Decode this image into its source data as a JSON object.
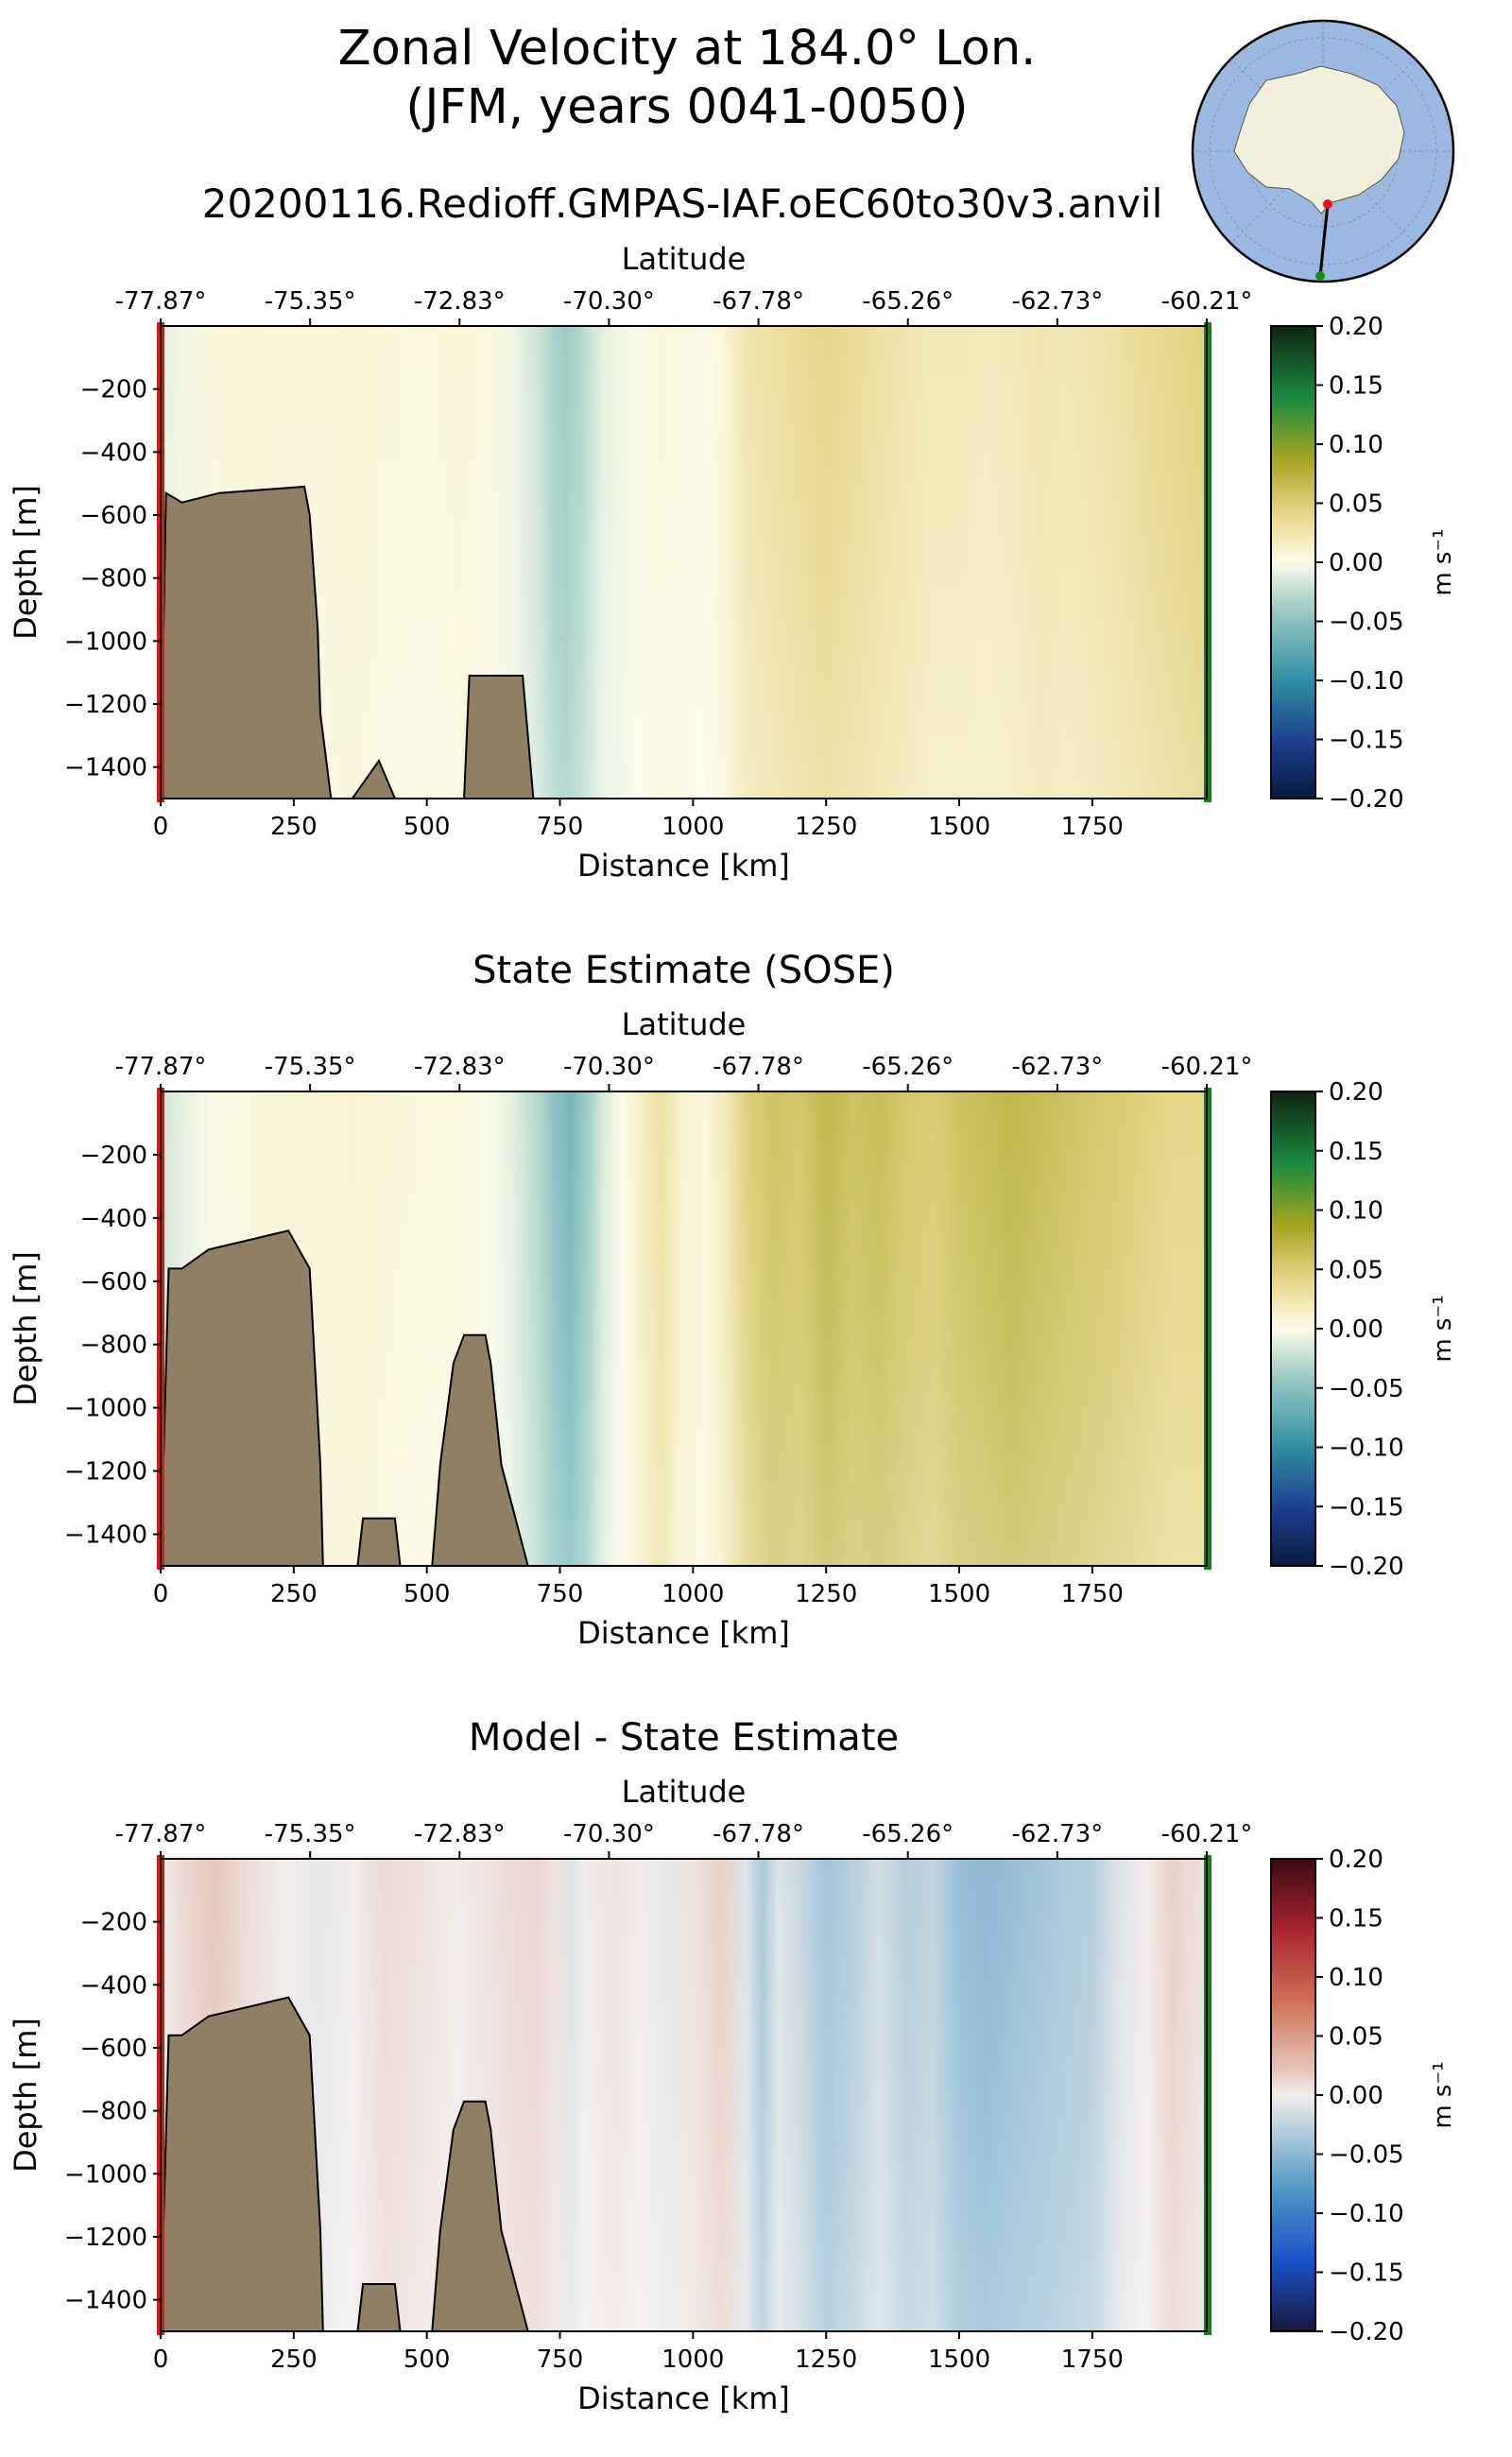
{
  "header": {
    "title_line1": "Zonal Velocity at 184.0° Lon.",
    "title_line2": "(JFM, years 0041-0050)",
    "run_name": "20200116.Redioff.GMPAS-IAF.oEC60to30v3.anvil"
  },
  "inset_map": {
    "description_icon": "antarctica-polar-map-icon",
    "ocean_color": "#9bb9e0",
    "land_color": "#f1efdd",
    "start_marker_color": "#e0151a",
    "end_marker_color": "#1a8c1a"
  },
  "chart_data": [
    {
      "type": "heatmap",
      "title": "",
      "xlabel": "Distance [km]",
      "ylabel": "Depth [m]",
      "top_axis_label": "Latitude",
      "top_ticks": [
        "-77.87°",
        "-75.35°",
        "-72.83°",
        "-70.30°",
        "-67.78°",
        "-65.26°",
        "-62.73°",
        "-60.21°"
      ],
      "xlim": [
        0,
        1965
      ],
      "ylim": [
        -1500,
        0
      ],
      "x_ticks": [
        0,
        250,
        500,
        750,
        1000,
        1250,
        1500,
        1750
      ],
      "y_ticks": [
        -200,
        -400,
        -600,
        -800,
        -1000,
        -1200,
        -1400
      ],
      "colorbar": {
        "label": "m s⁻¹",
        "colormap": "speed-diverging",
        "range": [
          -0.2,
          0.2
        ],
        "ticks": [
          "0.20",
          "0.15",
          "0.10",
          "0.05",
          "0.00",
          "−0.05",
          "−0.10",
          "−0.15",
          "−0.20"
        ]
      },
      "velocity_profile": {
        "x_km": [
          0,
          40,
          100,
          170,
          230,
          300,
          360,
          420,
          500,
          560,
          610,
          660,
          710,
          740,
          760,
          790,
          830,
          870,
          900,
          940,
          980,
          1020,
          1060,
          1100,
          1150,
          1200,
          1250,
          1300,
          1350,
          1400,
          1450,
          1500,
          1550,
          1600,
          1650,
          1700,
          1750,
          1800,
          1850,
          1900,
          1965
        ],
        "values": [
          -0.01,
          -0.005,
          0.005,
          0.008,
          0.006,
          0.006,
          0.008,
          0.005,
          0.004,
          0.006,
          0.004,
          -0.005,
          -0.02,
          -0.035,
          -0.04,
          -0.03,
          -0.01,
          -0.005,
          0.0,
          0.005,
          0.003,
          0.0,
          0.008,
          0.025,
          0.03,
          0.035,
          0.04,
          0.035,
          0.03,
          0.025,
          0.02,
          0.02,
          0.018,
          0.02,
          0.025,
          0.022,
          0.025,
          0.03,
          0.035,
          0.04,
          0.045
        ]
      },
      "bathymetry": {
        "x_km": [
          0,
          10,
          40,
          110,
          270,
          280,
          295,
          300,
          320,
          360,
          410,
          440,
          460,
          570,
          580,
          680,
          700,
          1965
        ],
        "depth_m": [
          -1500,
          -530,
          -560,
          -530,
          -510,
          -600,
          -960,
          -1230,
          -1500,
          -1500,
          -1380,
          -1500,
          -1500,
          -1500,
          -1110,
          -1110,
          -1500,
          -1500
        ]
      }
    },
    {
      "type": "heatmap",
      "title": "State Estimate (SOSE)",
      "xlabel": "Distance [km]",
      "ylabel": "Depth [m]",
      "top_axis_label": "Latitude",
      "top_ticks": [
        "-77.87°",
        "-75.35°",
        "-72.83°",
        "-70.30°",
        "-67.78°",
        "-65.26°",
        "-62.73°",
        "-60.21°"
      ],
      "xlim": [
        0,
        1965
      ],
      "ylim": [
        -1500,
        0
      ],
      "x_ticks": [
        0,
        250,
        500,
        750,
        1000,
        1250,
        1500,
        1750
      ],
      "y_ticks": [
        -200,
        -400,
        -600,
        -800,
        -1000,
        -1200,
        -1400
      ],
      "colorbar": {
        "label": "m s⁻¹",
        "colormap": "speed-diverging",
        "range": [
          -0.2,
          0.2
        ],
        "ticks": [
          "0.20",
          "0.15",
          "0.10",
          "0.05",
          "0.00",
          "−0.05",
          "−0.10",
          "−0.15",
          "−0.20"
        ]
      },
      "velocity_profile": {
        "x_km": [
          0,
          40,
          100,
          170,
          230,
          300,
          360,
          420,
          500,
          560,
          610,
          660,
          710,
          740,
          770,
          800,
          830,
          870,
          900,
          940,
          980,
          1020,
          1060,
          1100,
          1150,
          1200,
          1250,
          1300,
          1350,
          1400,
          1450,
          1500,
          1550,
          1600,
          1650,
          1700,
          1750,
          1800,
          1850,
          1900,
          1965
        ],
        "values": [
          -0.02,
          -0.01,
          0.0,
          0.005,
          0.008,
          0.007,
          0.01,
          0.006,
          0.004,
          0.004,
          0.0,
          -0.01,
          -0.03,
          -0.05,
          -0.06,
          -0.04,
          -0.015,
          0.0,
          0.015,
          0.03,
          0.01,
          0.005,
          0.02,
          0.045,
          0.06,
          0.055,
          0.07,
          0.06,
          0.065,
          0.055,
          0.05,
          0.06,
          0.065,
          0.07,
          0.065,
          0.06,
          0.055,
          0.05,
          0.045,
          0.04,
          0.04
        ]
      },
      "bathymetry": {
        "x_km": [
          0,
          15,
          40,
          90,
          240,
          280,
          300,
          305,
          320,
          370,
          380,
          440,
          450,
          510,
          525,
          550,
          570,
          610,
          620,
          640,
          690,
          1965
        ],
        "depth_m": [
          -1500,
          -560,
          -560,
          -500,
          -440,
          -560,
          -1180,
          -1500,
          -1500,
          -1500,
          -1350,
          -1350,
          -1500,
          -1500,
          -1180,
          -860,
          -770,
          -770,
          -860,
          -1180,
          -1500,
          -1500
        ]
      }
    },
    {
      "type": "heatmap",
      "title": "Model - State Estimate",
      "xlabel": "Distance [km]",
      "ylabel": "Depth [m]",
      "top_axis_label": "Latitude",
      "top_ticks": [
        "-77.87°",
        "-75.35°",
        "-72.83°",
        "-70.30°",
        "-67.78°",
        "-65.26°",
        "-62.73°",
        "-60.21°"
      ],
      "xlim": [
        0,
        1965
      ],
      "ylim": [
        -1500,
        0
      ],
      "x_ticks": [
        0,
        250,
        500,
        750,
        1000,
        1250,
        1500,
        1750
      ],
      "y_ticks": [
        -200,
        -400,
        -600,
        -800,
        -1000,
        -1200,
        -1400
      ],
      "colorbar": {
        "label": "m s⁻¹",
        "colormap": "balance-diverging",
        "range": [
          -0.2,
          0.2
        ],
        "ticks": [
          "0.20",
          "0.15",
          "0.10",
          "0.05",
          "0.00",
          "−0.05",
          "−0.10",
          "−0.15",
          "−0.20"
        ]
      },
      "velocity_profile": {
        "x_km": [
          0,
          40,
          100,
          170,
          230,
          300,
          360,
          420,
          500,
          560,
          610,
          660,
          710,
          740,
          770,
          800,
          850,
          900,
          950,
          1000,
          1050,
          1100,
          1130,
          1160,
          1200,
          1250,
          1300,
          1350,
          1400,
          1450,
          1500,
          1550,
          1600,
          1650,
          1700,
          1750,
          1800,
          1850,
          1900,
          1965
        ],
        "values": [
          0.0,
          0.01,
          0.02,
          0.008,
          0.0,
          -0.005,
          0.0,
          0.01,
          0.005,
          0.0,
          0.005,
          0.01,
          0.012,
          0.005,
          -0.01,
          0.0,
          0.005,
          0.0,
          -0.005,
          0.005,
          0.015,
          -0.01,
          -0.035,
          -0.01,
          -0.02,
          -0.04,
          -0.03,
          -0.015,
          -0.03,
          -0.025,
          -0.045,
          -0.05,
          -0.045,
          -0.04,
          -0.035,
          -0.03,
          -0.01,
          0.0,
          0.015,
          0.005
        ]
      },
      "bathymetry": {
        "x_km": [
          0,
          15,
          40,
          90,
          240,
          280,
          300,
          305,
          320,
          370,
          380,
          440,
          450,
          510,
          525,
          550,
          570,
          610,
          620,
          640,
          690,
          1965
        ],
        "depth_m": [
          -1500,
          -560,
          -560,
          -500,
          -440,
          -560,
          -1180,
          -1500,
          -1500,
          -1500,
          -1350,
          -1350,
          -1500,
          -1500,
          -1180,
          -860,
          -770,
          -770,
          -860,
          -1180,
          -1500,
          -1500
        ]
      }
    }
  ]
}
